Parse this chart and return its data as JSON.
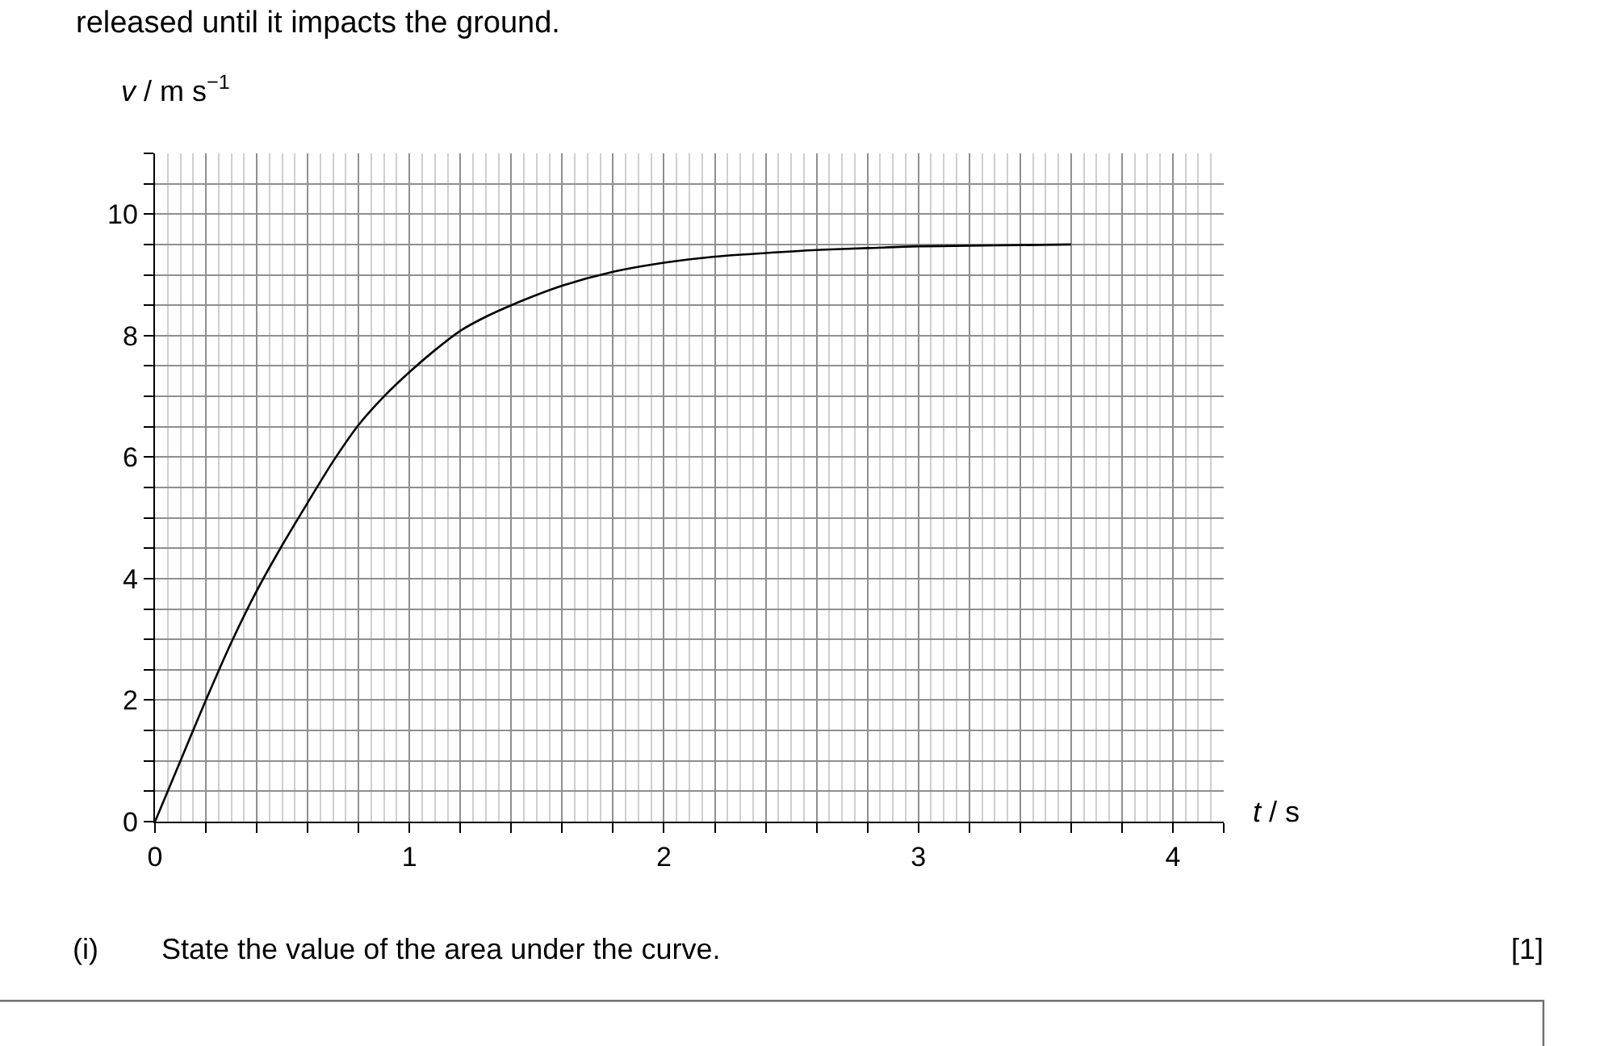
{
  "chart_data": {
    "type": "line",
    "annotations": [
      "released until it impacts the ground.",
      "(i)",
      "State the value of the area under the curve.",
      "[1]"
    ],
    "xlabel": "t / s",
    "ylabel": "v / m s$^{−1}$",
    "x": [
      0,
      0.1,
      0.2,
      0.3,
      0.4,
      0.5,
      0.6,
      0.7,
      0.8,
      0.9,
      1.0,
      1.1,
      1.2,
      1.3,
      1.4,
      1.6,
      1.8,
      2.0,
      2.2,
      2.4,
      2.6,
      2.8,
      3.0,
      3.2,
      3.4,
      3.6
    ],
    "series": [
      {
        "color": "#000000",
        "values": [
          0,
          1.0,
          2.0,
          2.95,
          3.8,
          4.55,
          5.25,
          5.93,
          6.53,
          7.0,
          7.4,
          7.76,
          8.08,
          8.31,
          8.5,
          8.82,
          9.05,
          9.2,
          9.3,
          9.36,
          9.41,
          9.44,
          9.47,
          9.48,
          9.49,
          9.5
        ]
      }
    ],
    "xlim": [
      0,
      4.2
    ],
    "ylim": [
      0,
      11
    ],
    "xticks": [
      0,
      {
        "value": 0.2,
        "label": null
      },
      {
        "value": 0.4,
        "label": null
      },
      {
        "value": 0.6,
        "label": null
      },
      {
        "value": 0.8,
        "label": null
      },
      1,
      {
        "value": 1.2,
        "label": null
      },
      {
        "value": 1.4,
        "label": null
      },
      {
        "value": 1.6,
        "label": null
      },
      {
        "value": 1.8,
        "label": null
      },
      2,
      {
        "value": 2.2,
        "label": null
      },
      {
        "value": 2.4,
        "label": null
      },
      {
        "value": 2.6,
        "label": null
      },
      {
        "value": 2.8,
        "label": null
      },
      3,
      {
        "value": 3.2,
        "label": null
      },
      {
        "value": 3.4,
        "label": null
      },
      {
        "value": 3.6,
        "label": null
      },
      {
        "value": 3.8,
        "label": null
      },
      4,
      {
        "value": 4.2,
        "label": null
      }
    ],
    "yticks": [
      0,
      {
        "value": 0.5,
        "label": null
      },
      {
        "value": 1,
        "label": null
      },
      {
        "value": 1.5,
        "label": null
      },
      2,
      {
        "value": 2.5,
        "label": null
      },
      {
        "value": 3,
        "label": null
      },
      {
        "value": 3.5,
        "label": null
      },
      4,
      {
        "value": 4.5,
        "label": null
      },
      {
        "value": 5,
        "label": null
      },
      {
        "value": 5.5,
        "label": null
      },
      6,
      {
        "value": 6.5,
        "label": null
      },
      {
        "value": 7,
        "label": null
      },
      {
        "value": 7.5,
        "label": null
      },
      8,
      {
        "value": 8.5,
        "label": null
      },
      {
        "value": 9,
        "label": null
      },
      {
        "value": 9.5,
        "label": null
      },
      10,
      {
        "value": 10.5,
        "label": null
      },
      {
        "value": 11,
        "label": null
      }
    ],
    "grid": true
  }
}
